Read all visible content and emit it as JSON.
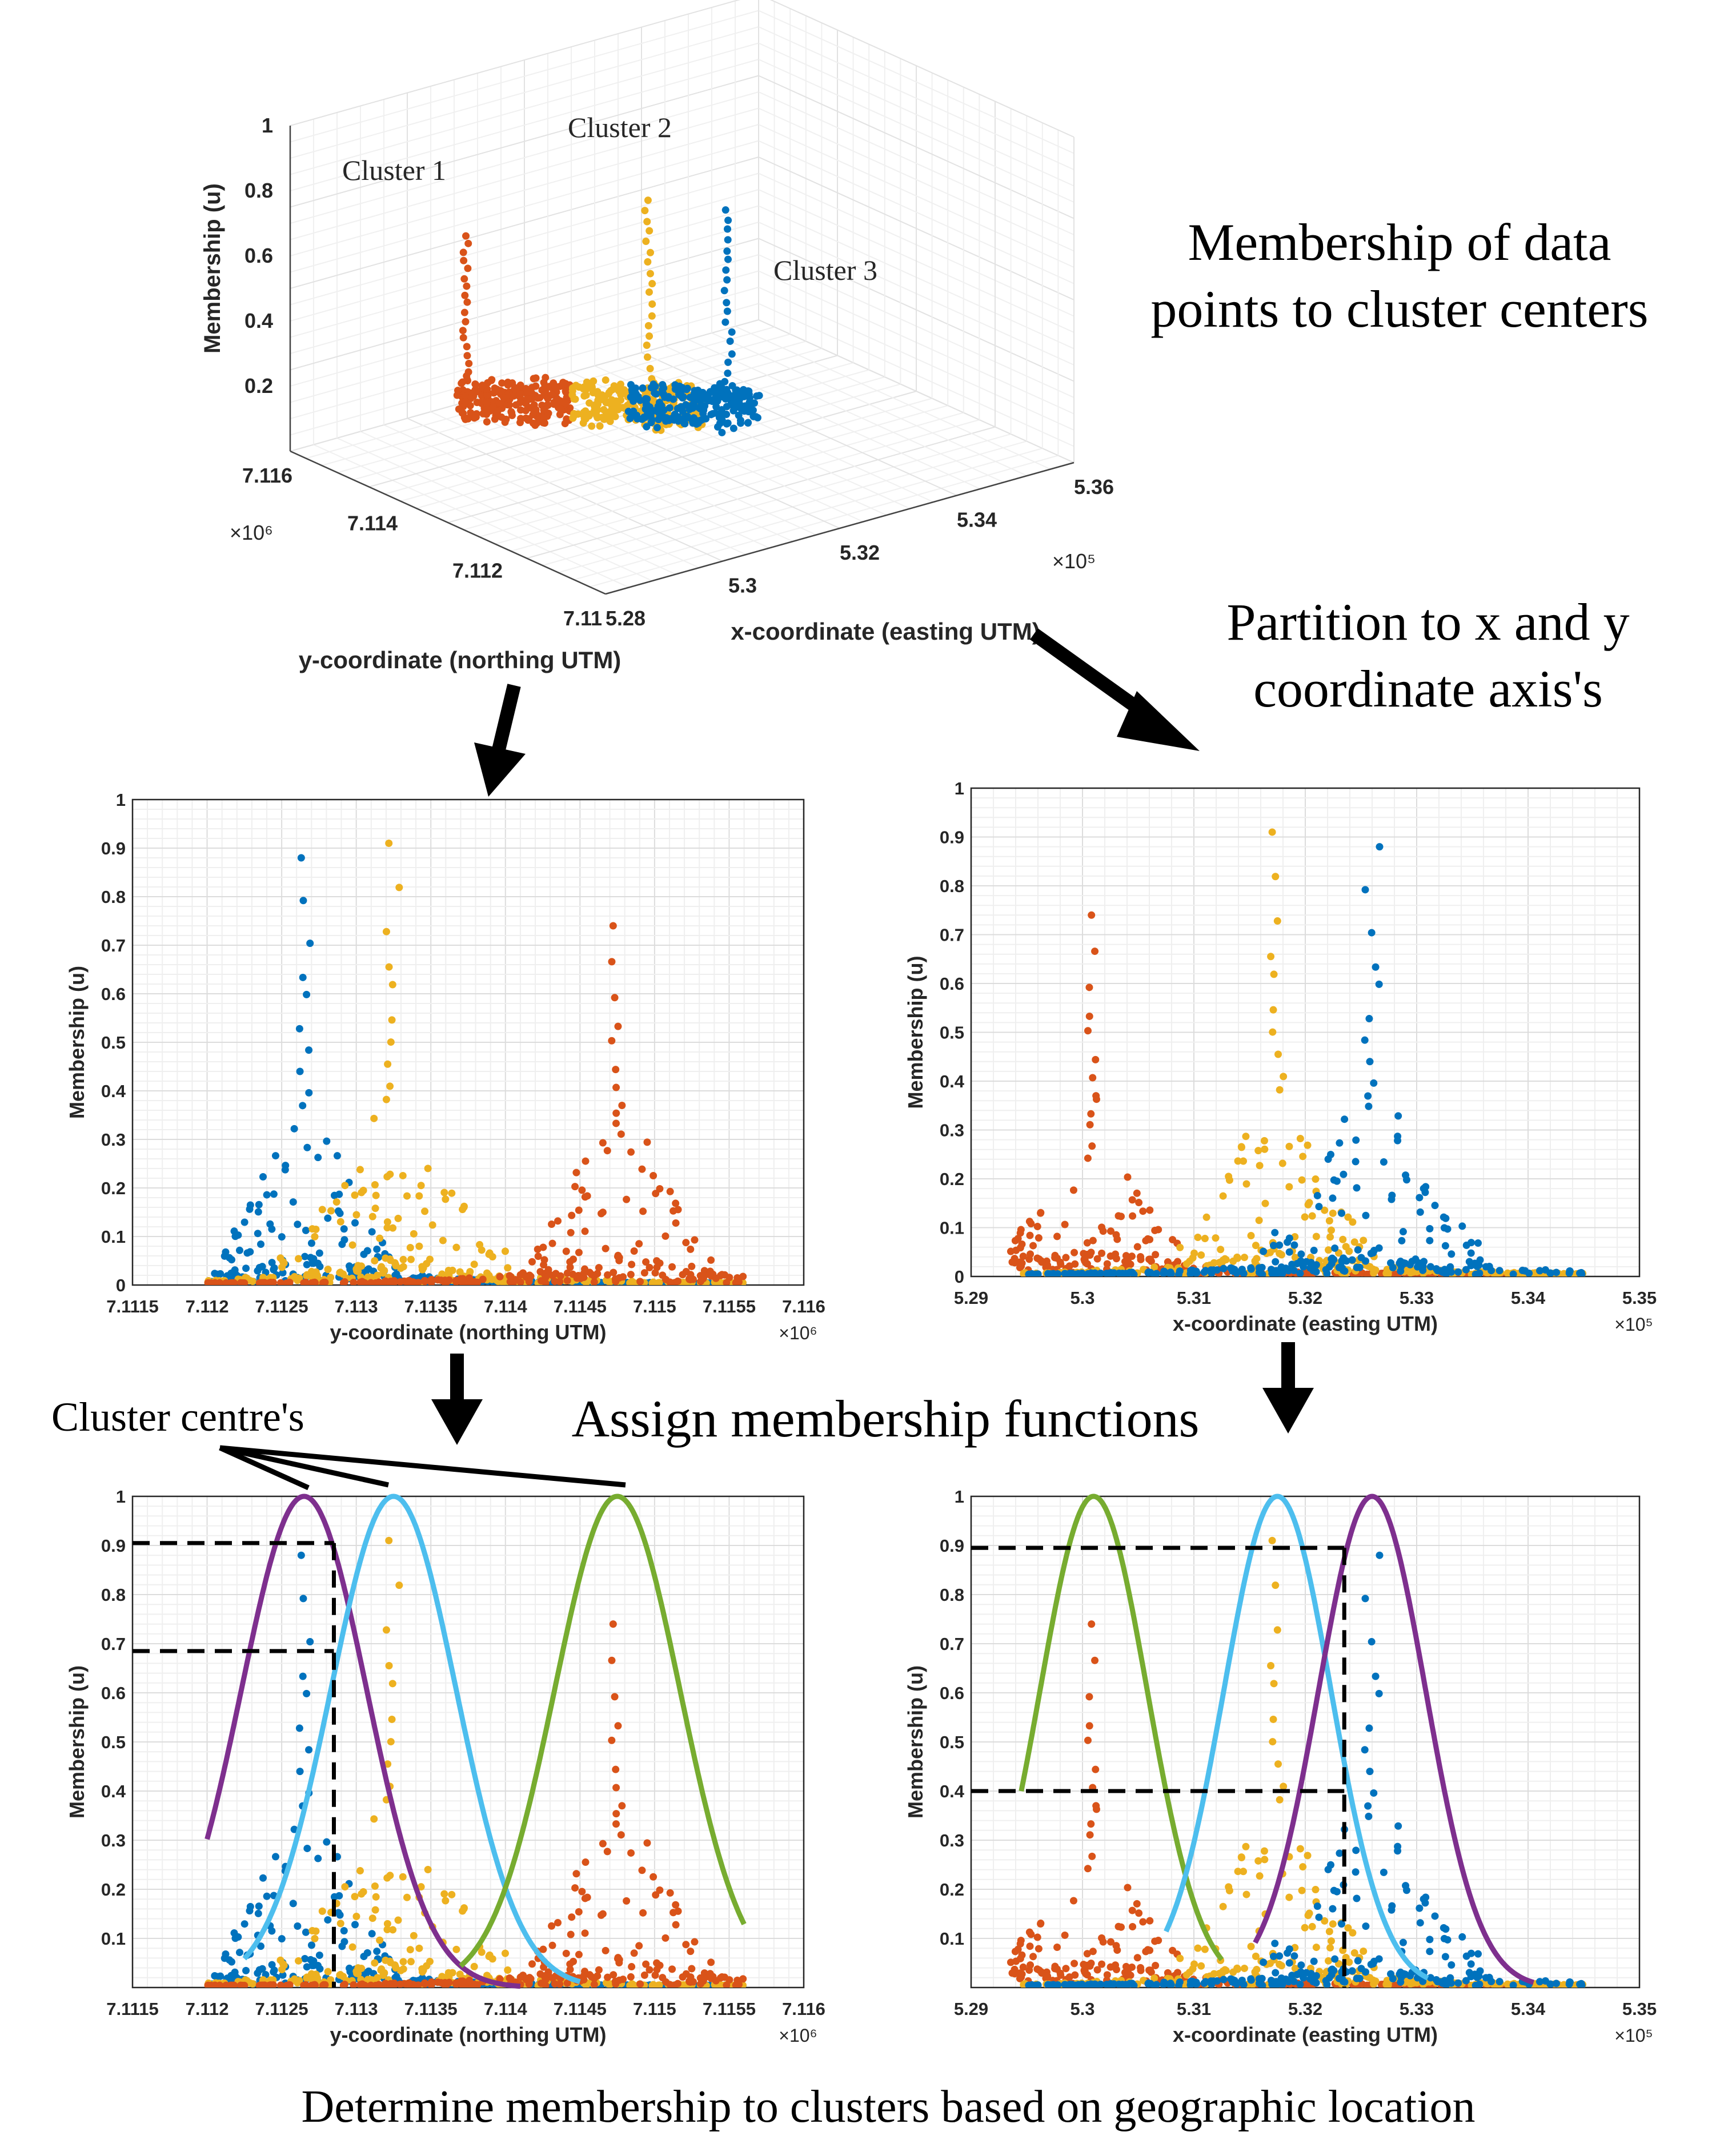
{
  "texts": {
    "heading_membership": [
      "Membership of data",
      "points to cluster centers"
    ],
    "heading_partition": [
      "Partition to x and y",
      "coordinate axis's"
    ],
    "heading_assign": "Assign membership functions",
    "label_cluster_centres": "Cluster centre's",
    "caption_bottom": "Determine membership to clusters based on geographic location"
  },
  "colors": {
    "cluster1": "#D95319",
    "cluster2": "#EDB120",
    "cluster3": "#0072BD",
    "mf_purple": "#7E2F8E",
    "mf_cyan": "#4DBEEE",
    "mf_green": "#77AC30",
    "grid": "#e6e6e6",
    "axis": "#262626"
  },
  "chart_data": [
    {
      "id": "plot3d",
      "type": "scatter",
      "title": "",
      "xlabel": "x-coordinate (easting UTM)",
      "ylabel": "y-coordinate (northing UTM)",
      "zlabel": "Membership (u)",
      "x_ticks": [
        "5.28",
        "5.3",
        "5.32",
        "5.34",
        "5.36"
      ],
      "x_exponent": "×10⁵",
      "y_ticks": [
        "7.11",
        "7.112",
        "7.114",
        "7.116"
      ],
      "y_exponent": "×10⁶",
      "z_ticks": [
        "0.2",
        "0.4",
        "0.6",
        "0.8",
        "1"
      ],
      "series": [
        {
          "name": "Cluster 1",
          "peak": 0.74
        },
        {
          "name": "Cluster 2",
          "peak": 0.91
        },
        {
          "name": "Cluster 3",
          "peak": 0.88
        }
      ]
    },
    {
      "id": "mid_left",
      "type": "scatter",
      "xlabel": "y-coordinate (northing UTM)",
      "ylabel": "Membership (u)",
      "x_exponent": "×10⁶",
      "xlim": [
        7.1115,
        7.116
      ],
      "ylim": [
        0,
        1
      ],
      "x_ticks": [
        "7.1115",
        "7.112",
        "7.1125",
        "7.113",
        "7.1135",
        "7.114",
        "7.1145",
        "7.115",
        "7.1155",
        "7.116"
      ],
      "y_ticks": [
        "0",
        "0.1",
        "0.2",
        "0.3",
        "0.4",
        "0.5",
        "0.6",
        "0.7",
        "0.8",
        "0.9",
        "1"
      ],
      "data_range": [
        7.112,
        7.1156
      ],
      "series": [
        {
          "name": "Cluster 3",
          "center": 7.11265,
          "peak": 0.88,
          "spread": 0.00028
        },
        {
          "name": "Cluster 2",
          "center": 7.11325,
          "peak": 0.91,
          "spread": 0.00035
        },
        {
          "name": "Cluster 1",
          "center": 7.11475,
          "peak": 0.74,
          "spread": 0.0003
        }
      ]
    },
    {
      "id": "mid_right",
      "type": "scatter",
      "xlabel": "x-coordinate (easting UTM)",
      "ylabel": "Membership (u)",
      "x_exponent": "×10⁵",
      "xlim": [
        5.29,
        5.35
      ],
      "ylim": [
        0,
        1
      ],
      "x_ticks": [
        "5.29",
        "5.3",
        "5.31",
        "5.32",
        "5.33",
        "5.34",
        "5.35"
      ],
      "y_ticks": [
        "0",
        "0.1",
        "0.2",
        "0.3",
        "0.4",
        "0.5",
        "0.6",
        "0.7",
        "0.8",
        "0.9",
        "1"
      ],
      "data_range": [
        5.2945,
        5.345
      ],
      "series": [
        {
          "name": "Cluster 1",
          "center": 5.301,
          "peak": 0.74,
          "spread": 0.0035
        },
        {
          "name": "Cluster 2",
          "center": 5.3175,
          "peak": 0.91,
          "spread": 0.004
        },
        {
          "name": "Cluster 3",
          "center": 5.326,
          "peak": 0.88,
          "spread": 0.0045
        }
      ]
    },
    {
      "id": "bottom_left",
      "type": "scatter",
      "xlabel": "y-coordinate (northing UTM)",
      "ylabel": "Membership (u)",
      "x_exponent": "×10⁶",
      "xlim": [
        7.1115,
        7.116
      ],
      "ylim": [
        0,
        1
      ],
      "x_ticks": [
        "7.1115",
        "7.112",
        "7.1125",
        "7.113",
        "7.1135",
        "7.114",
        "7.1145",
        "7.115",
        "7.1155",
        "7.116"
      ],
      "y_ticks": [
        "0.1",
        "0.2",
        "0.3",
        "0.4",
        "0.5",
        "0.6",
        "0.7",
        "0.8",
        "0.9",
        "1"
      ],
      "data_range": [
        7.112,
        7.1156
      ],
      "series": [
        {
          "name": "Cluster 3",
          "center": 7.11265,
          "peak": 0.88,
          "spread": 0.00028
        },
        {
          "name": "Cluster 2",
          "center": 7.11325,
          "peak": 0.91,
          "spread": 0.00035
        },
        {
          "name": "Cluster 1",
          "center": 7.11475,
          "peak": 0.74,
          "spread": 0.0003
        }
      ],
      "membership_functions": [
        {
          "name": "purple",
          "center": 7.11265,
          "sigma": 0.00042,
          "domain": [
            7.112,
            7.1141
          ]
        },
        {
          "name": "cyan",
          "center": 7.11325,
          "sigma": 0.00042,
          "domain": [
            7.11225,
            7.1145
          ]
        },
        {
          "name": "green",
          "center": 7.11475,
          "sigma": 0.00042,
          "domain": [
            7.1137,
            7.1156
          ]
        }
      ],
      "guide_x": 7.11285,
      "guide_levels": [
        0.905,
        0.685
      ]
    },
    {
      "id": "bottom_right",
      "type": "scatter",
      "xlabel": "x-coordinate (easting UTM)",
      "ylabel": "Membership (u)",
      "x_exponent": "×10⁵",
      "xlim": [
        5.29,
        5.35
      ],
      "ylim": [
        0,
        1
      ],
      "x_ticks": [
        "5.29",
        "5.3",
        "5.31",
        "5.32",
        "5.33",
        "5.34",
        "5.35"
      ],
      "y_ticks": [
        "0.1",
        "0.2",
        "0.3",
        "0.4",
        "0.5",
        "0.6",
        "0.7",
        "0.8",
        "0.9",
        "1"
      ],
      "data_range": [
        5.2945,
        5.345
      ],
      "series": [
        {
          "name": "Cluster 1",
          "center": 5.301,
          "peak": 0.74,
          "spread": 0.0035
        },
        {
          "name": "Cluster 2",
          "center": 5.3175,
          "peak": 0.91,
          "spread": 0.004
        },
        {
          "name": "Cluster 3",
          "center": 5.326,
          "peak": 0.88,
          "spread": 0.0045
        }
      ],
      "membership_functions": [
        {
          "name": "green",
          "center": 5.301,
          "sigma": 0.0048,
          "domain": [
            5.2945,
            5.3125
          ]
        },
        {
          "name": "cyan",
          "center": 5.3175,
          "sigma": 0.0048,
          "domain": [
            5.3075,
            5.331
          ]
        },
        {
          "name": "purple",
          "center": 5.326,
          "sigma": 0.0048,
          "domain": [
            5.3155,
            5.3405
          ]
        }
      ],
      "guide_x": 5.3235,
      "guide_levels": [
        0.895,
        0.4
      ]
    }
  ]
}
